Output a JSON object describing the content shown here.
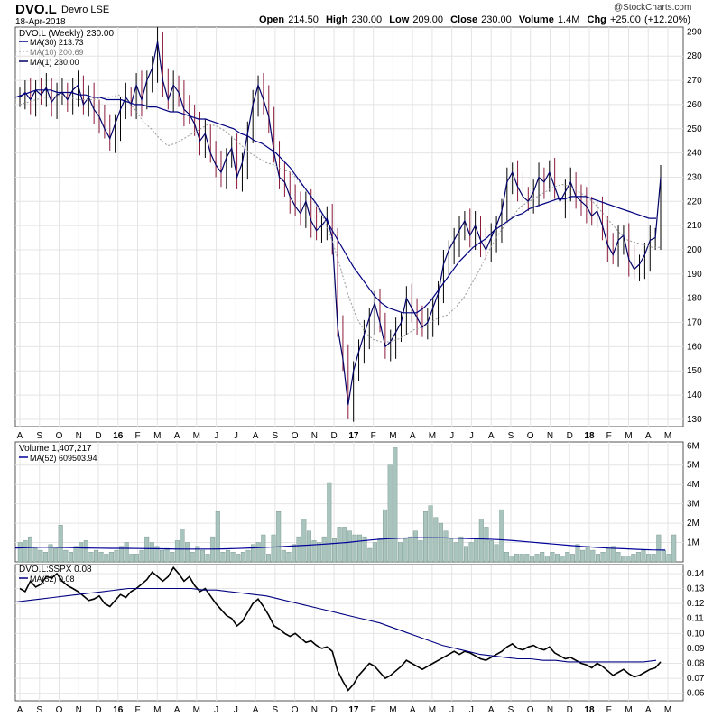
{
  "header": {
    "symbol": "DVO.L",
    "name": "Devro LSE",
    "date": "18-Apr-2018",
    "open_label": "Open",
    "open": "214.50",
    "high_label": "High",
    "high": "230.00",
    "low_label": "Low",
    "low": "209.00",
    "close_label": "Close",
    "close": "230.00",
    "volume_label": "Volume",
    "volume": "1.4M",
    "chg_label": "Chg",
    "chg": "+25.00 (+12.20%)",
    "brand": "@StockCharts.com"
  },
  "colors": {
    "price_line": "#000066",
    "ma30": "#000080",
    "ma10": "#999999",
    "down_bar": "#8b1a3a",
    "volume_bar": "#a9c4bc",
    "volume_ma": "#000099",
    "grid": "#e4e4e4"
  },
  "chart_data": [
    {
      "type": "line",
      "title": "DVO.L (Weekly) 230.00",
      "legend": [
        {
          "name": "MA(30) 213.73"
        },
        {
          "name": "MA(10) 200.69"
        },
        {
          "name": "MA(1) 230.00"
        }
      ],
      "ylim": [
        127,
        292
      ],
      "yticks": [
        130,
        140,
        150,
        160,
        170,
        180,
        190,
        200,
        210,
        220,
        230,
        240,
        250,
        260,
        270,
        280,
        290
      ],
      "x_labels": [
        "A",
        "S",
        "O",
        "N",
        "D",
        "16",
        "F",
        "M",
        "A",
        "M",
        "J",
        "J",
        "A",
        "S",
        "O",
        "N",
        "D",
        "17",
        "F",
        "M",
        "A",
        "M",
        "J",
        "J",
        "A",
        "S",
        "O",
        "N",
        "D",
        "18",
        "F",
        "M",
        "A",
        "M"
      ],
      "weekly_close": [
        263,
        265,
        262,
        266,
        264,
        267,
        261,
        264,
        265,
        262,
        266,
        268,
        260,
        263,
        258,
        255,
        250,
        246,
        252,
        258,
        263,
        260,
        268,
        262,
        270,
        275,
        286,
        270,
        262,
        268,
        265,
        258,
        256,
        252,
        245,
        248,
        240,
        235,
        232,
        238,
        242,
        230,
        236,
        248,
        260,
        268,
        262,
        255,
        240,
        230,
        228,
        222,
        218,
        215,
        220,
        212,
        208,
        210,
        213,
        205,
        168,
        155,
        136,
        150,
        158,
        165,
        172,
        178,
        170,
        160,
        162,
        166,
        170,
        180,
        176,
        172,
        168,
        170,
        176,
        182,
        194,
        200,
        204,
        208,
        212,
        206,
        210,
        204,
        200,
        205,
        210,
        216,
        228,
        232,
        226,
        222,
        220,
        224,
        230,
        228,
        232,
        226,
        220,
        224,
        228,
        222,
        220,
        218,
        214,
        216,
        210,
        202,
        198,
        204,
        206,
        196,
        192,
        194,
        198,
        204,
        205,
        230
      ],
      "ma30": [
        263,
        264,
        265,
        266,
        266,
        266,
        265,
        265,
        265,
        264,
        264,
        263,
        263,
        262,
        262,
        262,
        261,
        260,
        260,
        259,
        259,
        258,
        257,
        257,
        256,
        255,
        254,
        254,
        253,
        252,
        251,
        250,
        248,
        247,
        245,
        244,
        242,
        240,
        237,
        234,
        230,
        226,
        222,
        218,
        213,
        208,
        203,
        198,
        193,
        189,
        185,
        181,
        178,
        176,
        175,
        174,
        174,
        174,
        176,
        179,
        183,
        187,
        191,
        195,
        198,
        201,
        203,
        205,
        208,
        210,
        212,
        214,
        215,
        217,
        218,
        219,
        220,
        221,
        221,
        222,
        222,
        222,
        221,
        220,
        219,
        218,
        217,
        216,
        215,
        214,
        213,
        213
      ],
      "ma10": [
        260,
        261,
        262,
        263,
        263,
        264,
        263,
        262,
        262,
        262,
        263,
        263,
        264,
        262,
        258,
        253,
        250,
        246,
        243,
        244,
        246,
        248,
        250,
        252,
        251,
        249,
        246,
        243,
        240,
        238,
        236,
        235,
        233,
        232,
        228,
        224,
        219,
        213,
        204,
        193,
        181,
        172,
        166,
        163,
        162,
        162,
        163,
        165,
        167,
        168,
        170,
        172,
        173,
        176,
        180,
        186,
        192,
        199,
        205,
        210,
        214,
        218,
        220,
        222,
        224,
        226,
        227,
        226,
        224,
        222,
        219,
        215,
        211,
        207,
        204,
        203,
        202,
        201,
        201
      ]
    },
    {
      "type": "bar",
      "title": "Volume 1,407,217",
      "legend": [
        {
          "name": "MA(52) 609503.94"
        }
      ],
      "ylim": [
        0,
        6200000
      ],
      "yticks": [
        "1M",
        "2M",
        "3M",
        "4M",
        "5M",
        "6M"
      ],
      "values_millions": [
        1.0,
        1.1,
        1.3,
        0.7,
        0.6,
        0.5,
        0.9,
        0.7,
        1.9,
        0.6,
        0.5,
        0.8,
        1.0,
        1.1,
        0.5,
        0.6,
        0.5,
        0.4,
        0.5,
        0.6,
        0.8,
        1.0,
        0.4,
        0.4,
        0.6,
        1.3,
        1.0,
        0.8,
        0.6,
        0.7,
        0.5,
        1.1,
        1.7,
        1.0,
        0.5,
        0.8,
        0.6,
        0.4,
        1.3,
        2.6,
        0.5,
        0.6,
        0.5,
        0.4,
        0.5,
        0.6,
        0.9,
        1.0,
        1.4,
        0.4,
        1.4,
        2.6,
        0.6,
        0.5,
        0.9,
        1.3,
        2.2,
        1.6,
        1.1,
        1.0,
        1.3,
        4.1,
        1.2,
        1.8,
        1.8,
        1.6,
        1.4,
        1.4,
        1.3,
        0.7,
        1.0,
        1.2,
        2.7,
        5.0,
        5.9,
        1.0,
        1.2,
        1.3,
        1.6,
        1.1,
        2.6,
        2.9,
        2.3,
        2.0,
        1.6,
        1.2,
        1.0,
        1.3,
        0.8,
        1.0,
        1.2,
        2.2,
        1.8,
        1.1,
        0.9,
        2.7,
        0.5,
        0.3,
        0.4,
        0.4,
        0.4,
        0.3,
        0.4,
        0.5,
        0.3,
        0.5,
        0.4,
        0.3,
        0.5,
        0.4,
        0.9,
        0.6,
        0.8,
        0.6,
        0.4,
        0.5,
        0.7,
        0.8,
        0.5,
        0.3,
        0.3,
        0.4,
        0.5,
        0.6,
        0.4,
        0.4,
        1.4,
        0.6,
        0.4,
        1.4
      ],
      "ma52_millions": [
        0.72,
        0.74,
        0.76,
        0.75,
        0.74,
        0.72,
        0.71,
        0.7,
        0.7,
        0.69,
        0.68,
        0.67,
        0.66,
        0.66,
        0.66,
        0.67,
        0.69,
        0.72,
        0.75,
        0.78,
        0.82,
        0.86,
        0.9,
        0.95,
        1.0,
        1.08,
        1.15,
        1.2,
        1.23,
        1.25,
        1.25,
        1.24,
        1.22,
        1.2,
        1.18,
        1.15,
        1.1,
        1.04,
        0.98,
        0.92,
        0.86,
        0.8,
        0.75,
        0.71,
        0.68,
        0.65,
        0.62,
        0.61
      ]
    },
    {
      "type": "line",
      "title": "DVO.L:$SPX 0.08",
      "legend": [
        {
          "name": "MA(52) 0.08"
        }
      ],
      "ylim": [
        0.055,
        0.146
      ],
      "yticks": [
        0.06,
        0.07,
        0.08,
        0.09,
        0.1,
        0.11,
        0.12,
        0.13,
        0.14
      ],
      "ratio": [
        0.13,
        0.128,
        0.135,
        0.131,
        0.133,
        0.138,
        0.137,
        0.14,
        0.135,
        0.132,
        0.13,
        0.128,
        0.125,
        0.122,
        0.123,
        0.125,
        0.12,
        0.118,
        0.122,
        0.126,
        0.124,
        0.128,
        0.13,
        0.133,
        0.136,
        0.141,
        0.138,
        0.135,
        0.138,
        0.144,
        0.14,
        0.135,
        0.138,
        0.132,
        0.128,
        0.13,
        0.125,
        0.12,
        0.116,
        0.112,
        0.11,
        0.105,
        0.108,
        0.114,
        0.12,
        0.123,
        0.118,
        0.112,
        0.105,
        0.103,
        0.1,
        0.098,
        0.1,
        0.097,
        0.094,
        0.095,
        0.092,
        0.09,
        0.091,
        0.088,
        0.075,
        0.068,
        0.062,
        0.066,
        0.072,
        0.076,
        0.08,
        0.078,
        0.074,
        0.07,
        0.072,
        0.075,
        0.078,
        0.082,
        0.08,
        0.078,
        0.076,
        0.078,
        0.08,
        0.082,
        0.084,
        0.086,
        0.088,
        0.086,
        0.088,
        0.087,
        0.085,
        0.083,
        0.082,
        0.084,
        0.086,
        0.088,
        0.091,
        0.093,
        0.09,
        0.089,
        0.091,
        0.092,
        0.09,
        0.089,
        0.091,
        0.087,
        0.085,
        0.083,
        0.084,
        0.082,
        0.08,
        0.079,
        0.077,
        0.08,
        0.078,
        0.075,
        0.072,
        0.074,
        0.076,
        0.073,
        0.071,
        0.072,
        0.074,
        0.076,
        0.077,
        0.081
      ],
      "ma52": [
        0.121,
        0.122,
        0.123,
        0.124,
        0.125,
        0.126,
        0.127,
        0.128,
        0.129,
        0.13,
        0.13,
        0.13,
        0.13,
        0.13,
        0.13,
        0.129,
        0.129,
        0.128,
        0.127,
        0.126,
        0.125,
        0.123,
        0.121,
        0.119,
        0.117,
        0.115,
        0.113,
        0.111,
        0.109,
        0.107,
        0.104,
        0.101,
        0.098,
        0.095,
        0.092,
        0.09,
        0.088,
        0.086,
        0.085,
        0.084,
        0.083,
        0.083,
        0.082,
        0.082,
        0.081,
        0.081,
        0.081,
        0.081,
        0.081,
        0.081,
        0.081,
        0.082
      ]
    }
  ]
}
